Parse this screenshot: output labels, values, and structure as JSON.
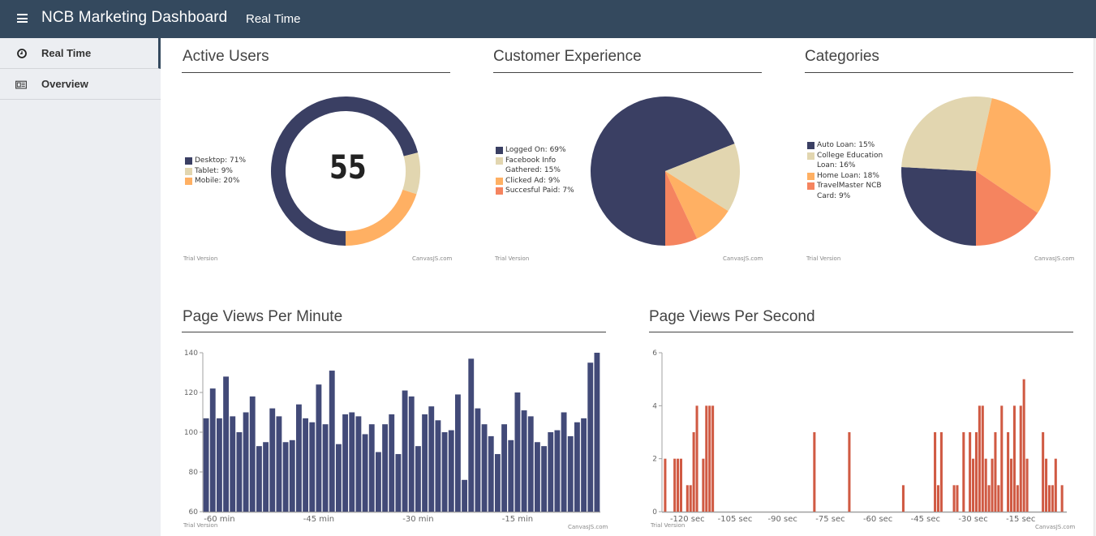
{
  "header": {
    "menu_icon": "hamburger-icon",
    "app_title": "NCB Marketing Dashboard",
    "page_label": "Real Time",
    "color": "#34495e"
  },
  "sidebar": {
    "items": [
      {
        "label": "Real Time",
        "icon": "clock-icon",
        "active": true
      },
      {
        "label": "Overview",
        "icon": "newspaper-icon",
        "active": false
      }
    ]
  },
  "watermark": {
    "left": "Trial Version",
    "right": "CanvasJS.com"
  },
  "chart_data": [
    {
      "id": "active-users",
      "type": "pie",
      "variant": "doughnut",
      "title": "Active Users",
      "center_label": "55",
      "legend_position": "left",
      "slices": [
        {
          "label": "Desktop: 71%",
          "name": "Desktop",
          "value": 71,
          "color": "#3a3f63"
        },
        {
          "label": "Tablet: 9%",
          "name": "Tablet",
          "value": 9,
          "color": "#e2d6b0"
        },
        {
          "label": "Mobile: 20%",
          "name": "Mobile",
          "value": 20,
          "color": "#ffb063"
        }
      ]
    },
    {
      "id": "customer-experience",
      "type": "pie",
      "title": "Customer Experience",
      "legend_position": "left",
      "slices": [
        {
          "label": "Logged On: 69%",
          "name": "Logged On",
          "value": 69,
          "color": "#3a3f63"
        },
        {
          "label": "Facebook Info Gathered: 15%",
          "name": "Facebook Info Gathered",
          "value": 15,
          "color": "#e2d6b0"
        },
        {
          "label": "Clicked Ad: 9%",
          "name": "Clicked Ad",
          "value": 9,
          "color": "#ffb063"
        },
        {
          "label": "Succesful Paid: 7%",
          "name": "Succesful Paid",
          "value": 7,
          "color": "#f5845f"
        }
      ]
    },
    {
      "id": "categories",
      "type": "pie",
      "title": "Categories",
      "legend_position": "left",
      "slices": [
        {
          "label": "Auto Loan: 15%",
          "name": "Auto Loan",
          "value": 15,
          "color": "#3a3f63"
        },
        {
          "label": "College Education Loan: 16%",
          "name": "College Education Loan",
          "value": 16,
          "color": "#e2d6b0"
        },
        {
          "label": "Home Loan: 18%",
          "name": "Home Loan",
          "value": 18,
          "color": "#ffb063"
        },
        {
          "label": "TravelMaster NCB Card: 9%",
          "name": "TravelMaster NCB Card",
          "value": 9,
          "color": "#f5845f"
        }
      ]
    },
    {
      "id": "page-views-per-minute",
      "type": "bar",
      "title": "Page Views Per Minute",
      "xlabel": "",
      "ylabel": "",
      "color": "#424a78",
      "ylim": [
        60,
        140
      ],
      "yticks": [
        60,
        80,
        100,
        120,
        140
      ],
      "xlim": [
        -62.5,
        -2.5
      ],
      "xticks": [
        {
          "value": -60,
          "label": "-60 min"
        },
        {
          "value": -45,
          "label": "-45 min"
        },
        {
          "value": -30,
          "label": "-30 min"
        },
        {
          "value": -15,
          "label": "-15 min"
        }
      ],
      "x_start": -62,
      "values": [
        107,
        122,
        107,
        128,
        108,
        100,
        110,
        118,
        93,
        95,
        112,
        108,
        95,
        96,
        114,
        107,
        105,
        124,
        104,
        131,
        94,
        109,
        110,
        108,
        99,
        104,
        90,
        104,
        109,
        89,
        121,
        118,
        93,
        109,
        113,
        106,
        100,
        101,
        119,
        76,
        137,
        112,
        104,
        98,
        89,
        104,
        96,
        120,
        111,
        108,
        95,
        93,
        100,
        101,
        110,
        98,
        105,
        107,
        135,
        140
      ]
    },
    {
      "id": "page-views-per-second",
      "type": "bar",
      "title": "Page Views Per Second",
      "xlabel": "",
      "ylabel": "",
      "color": "#d05a43",
      "ylim": [
        0,
        6
      ],
      "yticks": [
        0,
        2,
        4,
        6
      ],
      "xlim": [
        -128,
        -0.5
      ],
      "xticks": [
        {
          "value": -120,
          "label": "-120 sec"
        },
        {
          "value": -105,
          "label": "-105 sec"
        },
        {
          "value": -90,
          "label": "-90 sec"
        },
        {
          "value": -75,
          "label": "-75 sec"
        },
        {
          "value": -60,
          "label": "-60 sec"
        },
        {
          "value": -45,
          "label": "-45 sec"
        },
        {
          "value": -30,
          "label": "-30 sec"
        },
        {
          "value": -15,
          "label": "-15 sec"
        }
      ],
      "points": [
        {
          "x": -127,
          "y": 2
        },
        {
          "x": -124,
          "y": 2
        },
        {
          "x": -123,
          "y": 2
        },
        {
          "x": -122,
          "y": 2
        },
        {
          "x": -120,
          "y": 1
        },
        {
          "x": -119,
          "y": 1
        },
        {
          "x": -118,
          "y": 3
        },
        {
          "x": -117,
          "y": 4
        },
        {
          "x": -115,
          "y": 2
        },
        {
          "x": -114,
          "y": 4
        },
        {
          "x": -113,
          "y": 4
        },
        {
          "x": -112,
          "y": 4
        },
        {
          "x": -80,
          "y": 3
        },
        {
          "x": -69,
          "y": 3
        },
        {
          "x": -52,
          "y": 1
        },
        {
          "x": -42,
          "y": 3
        },
        {
          "x": -41,
          "y": 1
        },
        {
          "x": -40,
          "y": 3
        },
        {
          "x": -36,
          "y": 1
        },
        {
          "x": -35,
          "y": 1
        },
        {
          "x": -33,
          "y": 3
        },
        {
          "x": -31,
          "y": 3
        },
        {
          "x": -30,
          "y": 2
        },
        {
          "x": -29,
          "y": 3
        },
        {
          "x": -28,
          "y": 4
        },
        {
          "x": -27,
          "y": 4
        },
        {
          "x": -26,
          "y": 2
        },
        {
          "x": -25,
          "y": 1
        },
        {
          "x": -24,
          "y": 2
        },
        {
          "x": -23,
          "y": 3
        },
        {
          "x": -22,
          "y": 1
        },
        {
          "x": -21,
          "y": 4
        },
        {
          "x": -19,
          "y": 3
        },
        {
          "x": -18,
          "y": 2
        },
        {
          "x": -17,
          "y": 4
        },
        {
          "x": -16,
          "y": 1
        },
        {
          "x": -15,
          "y": 4
        },
        {
          "x": -14,
          "y": 5
        },
        {
          "x": -13,
          "y": 2
        },
        {
          "x": -8,
          "y": 3
        },
        {
          "x": -7,
          "y": 2
        },
        {
          "x": -6,
          "y": 1
        },
        {
          "x": -5,
          "y": 1
        },
        {
          "x": -4,
          "y": 2
        },
        {
          "x": -2,
          "y": 1
        }
      ]
    }
  ]
}
